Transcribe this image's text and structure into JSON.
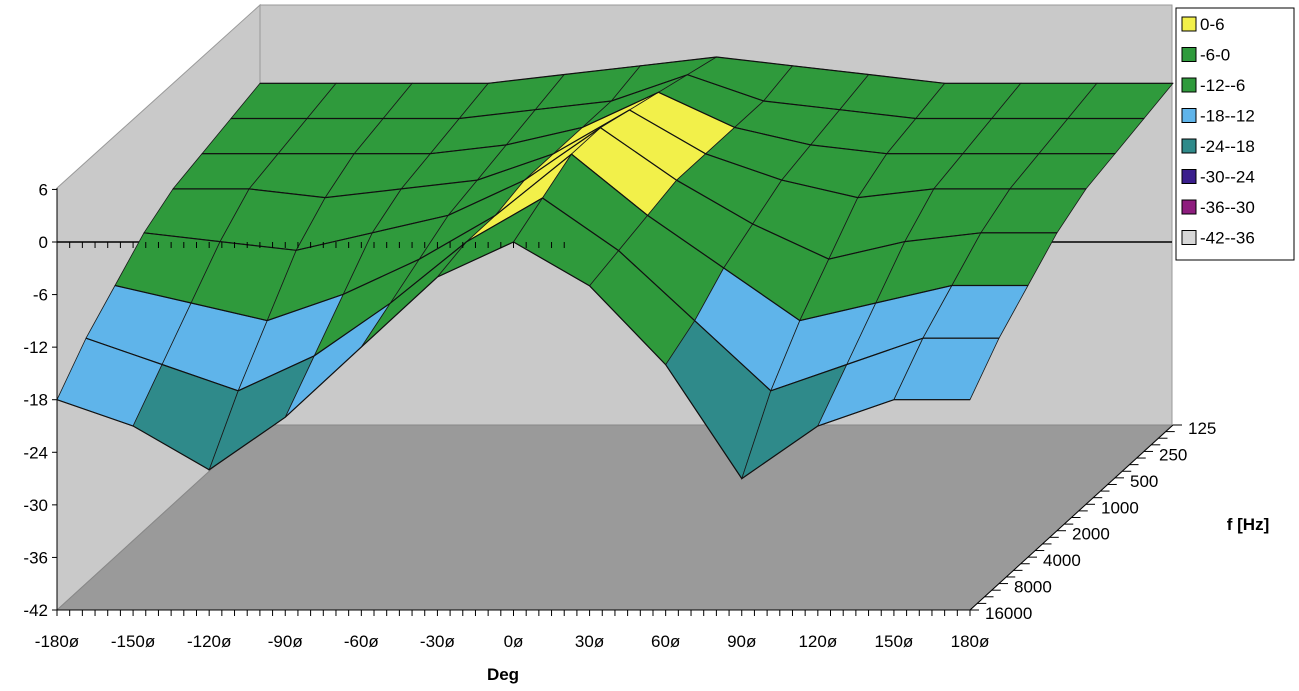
{
  "chart_data": {
    "type": "surface-3d",
    "xlabel": "Deg",
    "ylabel": "f [Hz]",
    "x_ticks": [
      "-180ø",
      "-150ø",
      "-120ø",
      "-90ø",
      "-60ø",
      "-30ø",
      "0ø",
      "30ø",
      "60ø",
      "90ø",
      "120ø",
      "150ø",
      "180ø"
    ],
    "z_ticks": [
      "6",
      "0",
      "-6",
      "-12",
      "-18",
      "-24",
      "-30",
      "-36",
      "-42"
    ],
    "y_ticks": [
      "125",
      "250",
      "500",
      "1000",
      "2000",
      "4000",
      "8000",
      "16000"
    ],
    "x_range": [
      -180,
      180
    ],
    "z_range": [
      -42,
      6
    ],
    "legend": [
      {
        "label": "0-6",
        "color": "#f2f04a"
      },
      {
        "label": "-6-0",
        "color": "#2f9a3c"
      },
      {
        "label": "-12--6",
        "color": "#2f9a3c"
      },
      {
        "label": "-18--12",
        "color": "#5fb4ea"
      },
      {
        "label": "-24--18",
        "color": "#2f8a8a"
      },
      {
        "label": "-30--24",
        "color": "#3a1e8c"
      },
      {
        "label": "-36--30",
        "color": "#8e1d7e"
      },
      {
        "label": "-42--36",
        "color": "#d8d8d8"
      }
    ],
    "frequencies": [
      125,
      250,
      500,
      1000,
      2000,
      4000,
      8000,
      16000
    ],
    "angles": [
      -180,
      -150,
      -120,
      -90,
      -60,
      -30,
      0,
      30,
      60,
      90,
      120,
      150,
      180
    ],
    "series": [
      {
        "frequency": "125",
        "values": [
          -3,
          -3,
          -3,
          -3,
          -2,
          -1,
          0,
          -1,
          -2,
          -3,
          -3,
          -3,
          -3
        ]
      },
      {
        "frequency": "250",
        "values": [
          -4,
          -4,
          -4,
          -4,
          -3,
          -2,
          1,
          -2,
          -3,
          -4,
          -4,
          -4,
          -4
        ]
      },
      {
        "frequency": "500",
        "values": [
          -5,
          -5,
          -5,
          -5,
          -4,
          -2,
          2,
          -2,
          -4,
          -5,
          -5,
          -5,
          -5
        ]
      },
      {
        "frequency": "1000",
        "values": [
          -6,
          -6,
          -7,
          -6,
          -5,
          -2,
          3,
          -2,
          -5,
          -7,
          -6,
          -6,
          -6
        ]
      },
      {
        "frequency": "2000",
        "values": [
          -8,
          -9,
          -10,
          -8,
          -6,
          -2,
          4,
          -2,
          -7,
          -11,
          -9,
          -8,
          -8
        ]
      },
      {
        "frequency": "4000",
        "values": [
          -11,
          -13,
          -15,
          -12,
          -8,
          -3,
          4,
          -3,
          -9,
          -15,
          -13,
          -11,
          -11
        ]
      },
      {
        "frequency": "8000",
        "values": [
          -14,
          -17,
          -20,
          -16,
          -10,
          -3,
          2,
          -4,
          -12,
          -20,
          -17,
          -14,
          -14
        ]
      },
      {
        "frequency": "16000",
        "values": [
          -18,
          -21,
          -26,
          -20,
          -12,
          -4,
          0,
          -5,
          -14,
          -27,
          -21,
          -18,
          -18
        ]
      }
    ]
  }
}
